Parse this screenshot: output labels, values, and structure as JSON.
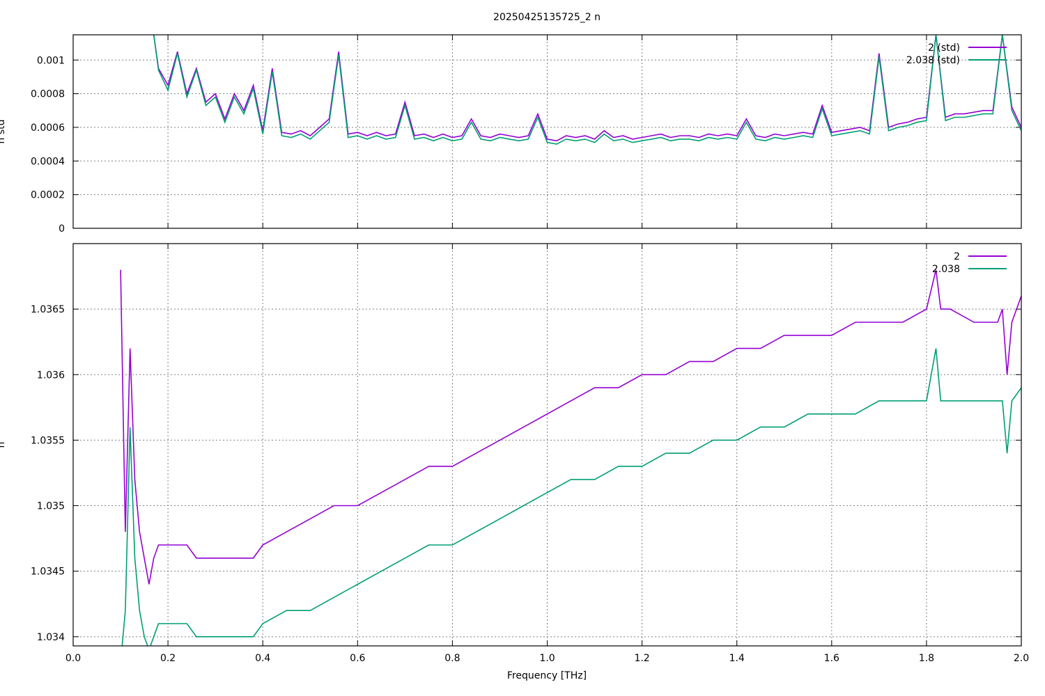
{
  "chart_data": {
    "title": "20250425135725_2 n",
    "xlabel": "Frequency [THz]",
    "x_ticks": [
      "0.0",
      "0.2",
      "0.4",
      "0.6",
      "0.8",
      "1.0",
      "1.2",
      "1.4",
      "1.6",
      "1.8",
      "2.0"
    ],
    "xlim": [
      0.0,
      2.0
    ],
    "grid": true,
    "legend_position": "top-right",
    "panels": [
      {
        "id": "std",
        "type": "line",
        "ylabel": "n std",
        "ylim": [
          0,
          0.00115
        ],
        "y_ticks": [
          {
            "value": 0,
            "label": "0"
          },
          {
            "value": 0.0002,
            "label": "0.0002"
          },
          {
            "value": 0.0004,
            "label": "0.0004"
          },
          {
            "value": 0.0006,
            "label": "0.0006"
          },
          {
            "value": 0.0008,
            "label": "0.0008"
          },
          {
            "value": 0.001,
            "label": "0.001"
          }
        ],
        "series": [
          {
            "name": "2 (std)",
            "color": "#9400d3",
            "x": [
              0.17,
              0.18,
              0.2,
              0.22,
              0.24,
              0.26,
              0.28,
              0.3,
              0.32,
              0.34,
              0.36,
              0.38,
              0.4,
              0.42,
              0.44,
              0.46,
              0.48,
              0.5,
              0.52,
              0.54,
              0.56,
              0.58,
              0.6,
              0.62,
              0.64,
              0.66,
              0.68,
              0.7,
              0.72,
              0.74,
              0.76,
              0.78,
              0.8,
              0.82,
              0.84,
              0.86,
              0.88,
              0.9,
              0.92,
              0.94,
              0.96,
              0.98,
              1.0,
              1.02,
              1.04,
              1.06,
              1.08,
              1.1,
              1.12,
              1.14,
              1.16,
              1.18,
              1.2,
              1.22,
              1.24,
              1.26,
              1.28,
              1.3,
              1.32,
              1.34,
              1.36,
              1.38,
              1.4,
              1.42,
              1.44,
              1.46,
              1.48,
              1.5,
              1.52,
              1.54,
              1.56,
              1.58,
              1.6,
              1.62,
              1.64,
              1.66,
              1.68,
              1.7,
              1.72,
              1.74,
              1.76,
              1.78,
              1.8,
              1.82,
              1.84,
              1.86,
              1.88,
              1.9,
              1.92,
              1.94,
              1.96,
              1.98,
              2.0
            ],
            "y": [
              0.00115,
              0.00095,
              0.00085,
              0.00105,
              0.0008,
              0.00095,
              0.00075,
              0.0008,
              0.00065,
              0.0008,
              0.0007,
              0.00085,
              0.00058,
              0.00095,
              0.00057,
              0.00056,
              0.00058,
              0.00055,
              0.0006,
              0.00065,
              0.00105,
              0.00056,
              0.00057,
              0.00055,
              0.00057,
              0.00055,
              0.00056,
              0.00075,
              0.00055,
              0.00056,
              0.00054,
              0.00056,
              0.00054,
              0.00055,
              0.00065,
              0.00055,
              0.00054,
              0.00056,
              0.00055,
              0.00054,
              0.00055,
              0.00068,
              0.00053,
              0.00052,
              0.00055,
              0.00054,
              0.00055,
              0.00053,
              0.00058,
              0.00054,
              0.00055,
              0.00053,
              0.00054,
              0.00055,
              0.00056,
              0.00054,
              0.00055,
              0.00055,
              0.00054,
              0.00056,
              0.00055,
              0.00056,
              0.00055,
              0.00065,
              0.00055,
              0.00054,
              0.00056,
              0.00055,
              0.00056,
              0.00057,
              0.00056,
              0.00073,
              0.00057,
              0.00058,
              0.00059,
              0.0006,
              0.00058,
              0.00104,
              0.0006,
              0.00062,
              0.00063,
              0.00065,
              0.00066,
              0.00115,
              0.00066,
              0.00068,
              0.00068,
              0.00069,
              0.0007,
              0.0007,
              0.00115,
              0.00072,
              0.0006
            ]
          },
          {
            "name": "2.038 (std)",
            "color": "#009e73",
            "x": [
              0.17,
              0.18,
              0.2,
              0.22,
              0.24,
              0.26,
              0.28,
              0.3,
              0.32,
              0.34,
              0.36,
              0.38,
              0.4,
              0.42,
              0.44,
              0.46,
              0.48,
              0.5,
              0.52,
              0.54,
              0.56,
              0.58,
              0.6,
              0.62,
              0.64,
              0.66,
              0.68,
              0.7,
              0.72,
              0.74,
              0.76,
              0.78,
              0.8,
              0.82,
              0.84,
              0.86,
              0.88,
              0.9,
              0.92,
              0.94,
              0.96,
              0.98,
              1.0,
              1.02,
              1.04,
              1.06,
              1.08,
              1.1,
              1.12,
              1.14,
              1.16,
              1.18,
              1.2,
              1.22,
              1.24,
              1.26,
              1.28,
              1.3,
              1.32,
              1.34,
              1.36,
              1.38,
              1.4,
              1.42,
              1.44,
              1.46,
              1.48,
              1.5,
              1.52,
              1.54,
              1.56,
              1.58,
              1.6,
              1.62,
              1.64,
              1.66,
              1.68,
              1.7,
              1.72,
              1.74,
              1.76,
              1.78,
              1.8,
              1.82,
              1.84,
              1.86,
              1.88,
              1.9,
              1.92,
              1.94,
              1.96,
              1.98,
              2.0
            ],
            "y": [
              0.00115,
              0.00094,
              0.00082,
              0.00104,
              0.00078,
              0.00094,
              0.00073,
              0.00078,
              0.00063,
              0.00078,
              0.00068,
              0.00083,
              0.00056,
              0.00093,
              0.00055,
              0.00054,
              0.00056,
              0.00053,
              0.00058,
              0.00063,
              0.00103,
              0.00054,
              0.00055,
              0.00053,
              0.00055,
              0.00053,
              0.00054,
              0.00073,
              0.00053,
              0.00054,
              0.00052,
              0.00054,
              0.00052,
              0.00053,
              0.00063,
              0.00053,
              0.00052,
              0.00054,
              0.00053,
              0.00052,
              0.00053,
              0.00066,
              0.00051,
              0.0005,
              0.00053,
              0.00052,
              0.00053,
              0.00051,
              0.00056,
              0.00052,
              0.00053,
              0.00051,
              0.00052,
              0.00053,
              0.00054,
              0.00052,
              0.00053,
              0.00053,
              0.00052,
              0.00054,
              0.00053,
              0.00054,
              0.00053,
              0.00063,
              0.00053,
              0.00052,
              0.00054,
              0.00053,
              0.00054,
              0.00055,
              0.00054,
              0.00071,
              0.00055,
              0.00056,
              0.00057,
              0.00058,
              0.00056,
              0.00102,
              0.00058,
              0.0006,
              0.00061,
              0.00063,
              0.00064,
              0.00115,
              0.00064,
              0.00066,
              0.00066,
              0.00067,
              0.00068,
              0.00068,
              0.00115,
              0.0007,
              0.00058
            ]
          }
        ]
      },
      {
        "id": "n",
        "type": "line",
        "ylabel": "n",
        "ylim": [
          1.03393,
          1.037
        ],
        "y_ticks": [
          {
            "value": 1.034,
            "label": "1.034"
          },
          {
            "value": 1.0345,
            "label": "1.0345"
          },
          {
            "value": 1.035,
            "label": "1.035"
          },
          {
            "value": 1.0355,
            "label": "1.0355"
          },
          {
            "value": 1.036,
            "label": "1.036"
          },
          {
            "value": 1.0365,
            "label": "1.0365"
          }
        ],
        "series": [
          {
            "name": "2",
            "color": "#9400d3",
            "x": [
              0.1,
              0.11,
              0.12,
              0.13,
              0.14,
              0.15,
              0.16,
              0.17,
              0.18,
              0.2,
              0.22,
              0.24,
              0.26,
              0.28,
              0.3,
              0.32,
              0.34,
              0.36,
              0.38,
              0.4,
              0.45,
              0.5,
              0.55,
              0.6,
              0.65,
              0.7,
              0.75,
              0.8,
              0.85,
              0.9,
              0.95,
              1.0,
              1.05,
              1.1,
              1.15,
              1.2,
              1.25,
              1.3,
              1.35,
              1.4,
              1.45,
              1.5,
              1.55,
              1.6,
              1.65,
              1.7,
              1.75,
              1.8,
              1.82,
              1.83,
              1.85,
              1.9,
              1.95,
              1.96,
              1.97,
              1.98,
              2.0
            ],
            "y": [
              1.0368,
              1.0348,
              1.0362,
              1.0352,
              1.0348,
              1.0346,
              1.0344,
              1.0346,
              1.0347,
              1.0347,
              1.0347,
              1.0347,
              1.0346,
              1.0346,
              1.0346,
              1.0346,
              1.0346,
              1.0346,
              1.0346,
              1.0347,
              1.0348,
              1.0349,
              1.035,
              1.035,
              1.0351,
              1.0352,
              1.0353,
              1.0353,
              1.0354,
              1.0355,
              1.0356,
              1.0357,
              1.0358,
              1.0359,
              1.0359,
              1.036,
              1.036,
              1.0361,
              1.0361,
              1.0362,
              1.0362,
              1.0363,
              1.0363,
              1.0363,
              1.0364,
              1.0364,
              1.0364,
              1.0365,
              1.0368,
              1.0365,
              1.0365,
              1.0364,
              1.0364,
              1.0365,
              1.036,
              1.0364,
              1.0366
            ]
          },
          {
            "name": "2.038",
            "color": "#009e73",
            "x": [
              0.1,
              0.11,
              0.12,
              0.13,
              0.14,
              0.15,
              0.16,
              0.17,
              0.18,
              0.2,
              0.22,
              0.24,
              0.26,
              0.28,
              0.3,
              0.32,
              0.34,
              0.36,
              0.38,
              0.4,
              0.45,
              0.5,
              0.55,
              0.6,
              0.65,
              0.7,
              0.75,
              0.8,
              0.85,
              0.9,
              0.95,
              1.0,
              1.05,
              1.1,
              1.15,
              1.2,
              1.25,
              1.3,
              1.35,
              1.4,
              1.45,
              1.5,
              1.55,
              1.6,
              1.65,
              1.7,
              1.75,
              1.8,
              1.82,
              1.83,
              1.85,
              1.9,
              1.95,
              1.96,
              1.97,
              1.98,
              2.0
            ],
            "y": [
              1.0338,
              1.0342,
              1.0356,
              1.0346,
              1.0342,
              1.034,
              1.0339,
              1.034,
              1.0341,
              1.0341,
              1.0341,
              1.0341,
              1.034,
              1.034,
              1.034,
              1.034,
              1.034,
              1.034,
              1.034,
              1.0341,
              1.0342,
              1.0342,
              1.0343,
              1.0344,
              1.0345,
              1.0346,
              1.0347,
              1.0347,
              1.0348,
              1.0349,
              1.035,
              1.0351,
              1.0352,
              1.0352,
              1.0353,
              1.0353,
              1.0354,
              1.0354,
              1.0355,
              1.0355,
              1.0356,
              1.0356,
              1.0357,
              1.0357,
              1.0357,
              1.0358,
              1.0358,
              1.0358,
              1.0362,
              1.0358,
              1.0358,
              1.0358,
              1.0358,
              1.0358,
              1.0354,
              1.0358,
              1.0359
            ]
          }
        ]
      }
    ]
  }
}
